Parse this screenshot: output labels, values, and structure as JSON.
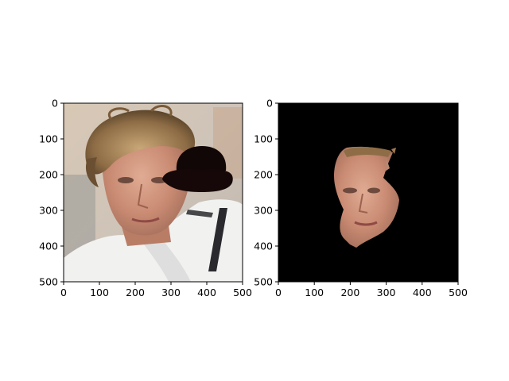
{
  "chart_data": [
    {
      "type": "image",
      "title": "",
      "xlabel": "",
      "ylabel": "",
      "xlim": [
        0,
        500
      ],
      "ylim": [
        500,
        0
      ],
      "xticks": [
        "0",
        "100",
        "200",
        "300",
        "400",
        "500"
      ],
      "yticks": [
        "0",
        "100",
        "200",
        "300",
        "400",
        "500"
      ],
      "content": "photo",
      "icon": "bowler-hat-icon"
    },
    {
      "type": "image",
      "title": "",
      "xlabel": "",
      "ylabel": "",
      "xlim": [
        0,
        500
      ],
      "ylim": [
        500,
        0
      ],
      "xticks": [
        "0",
        "100",
        "200",
        "300",
        "400",
        "500"
      ],
      "yticks": [
        "0",
        "100",
        "200",
        "300",
        "400",
        "500"
      ],
      "content": "masked-face",
      "background": "#000000"
    }
  ]
}
